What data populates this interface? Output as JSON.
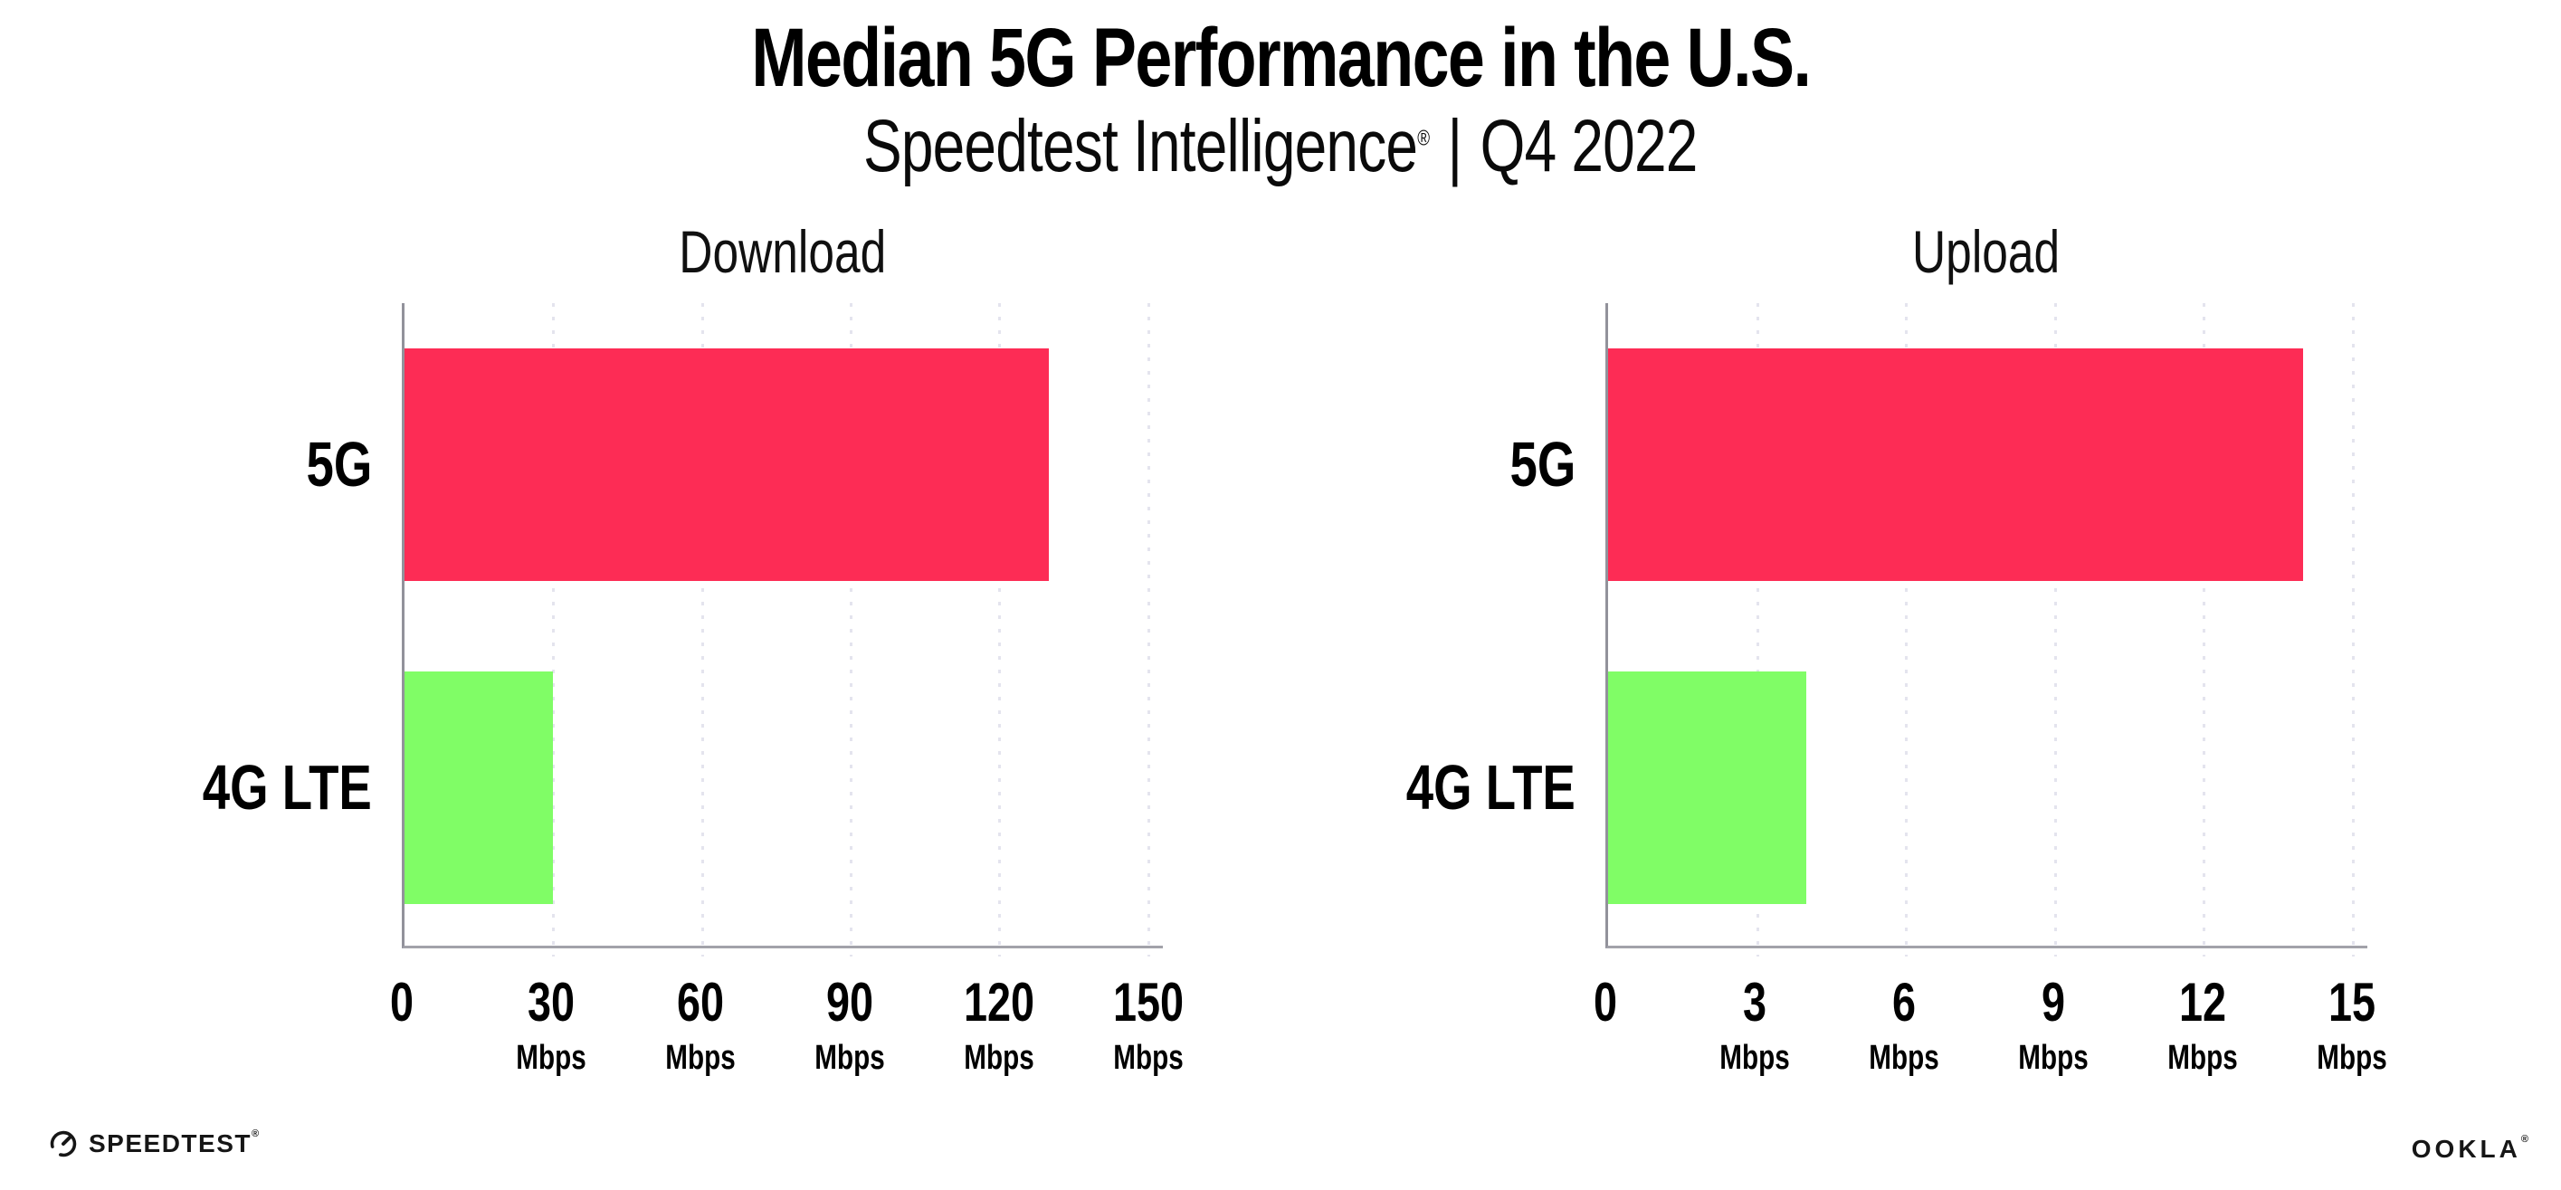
{
  "header": {
    "title": "Median 5G Performance in the U.S.",
    "subtitle_brand": "Speedtest Intelligence",
    "registered_mark": "®",
    "separator": "|",
    "period": "Q4 2022"
  },
  "chart_data": [
    {
      "type": "bar",
      "orientation": "horizontal",
      "title": "Download",
      "categories": [
        "5G",
        "4G LTE"
      ],
      "values": [
        130,
        30
      ],
      "unit": "Mbps",
      "xlabel": "",
      "ylabel": "",
      "xlim": [
        0,
        153
      ],
      "xticks": [
        0,
        30,
        60,
        90,
        120,
        150
      ],
      "bar_colors": [
        "#FD2C55",
        "#80FD66"
      ],
      "grid": "vertical-dotted",
      "legend": "none"
    },
    {
      "type": "bar",
      "orientation": "horizontal",
      "title": "Upload",
      "categories": [
        "5G",
        "4G LTE"
      ],
      "values": [
        14,
        4
      ],
      "unit": "Mbps",
      "xlabel": "",
      "ylabel": "",
      "xlim": [
        0,
        15.3
      ],
      "xticks": [
        0,
        3,
        6,
        9,
        12,
        15
      ],
      "bar_colors": [
        "#FD2C55",
        "#80FD66"
      ],
      "grid": "vertical-dotted",
      "legend": "none"
    }
  ],
  "footer": {
    "speedtest_label": "SPEEDTEST",
    "speedtest_icon": "speedometer-gauge-icon",
    "ookla_label": "OOKLA",
    "registered_mark": "®"
  },
  "colors": {
    "bar_5g": "#FD2C55",
    "bar_4g_lte": "#80FD66",
    "gridline": "#E4E4EE",
    "axis": "#9B9BA1",
    "text": "#000000",
    "background": "#FFFFFF"
  }
}
